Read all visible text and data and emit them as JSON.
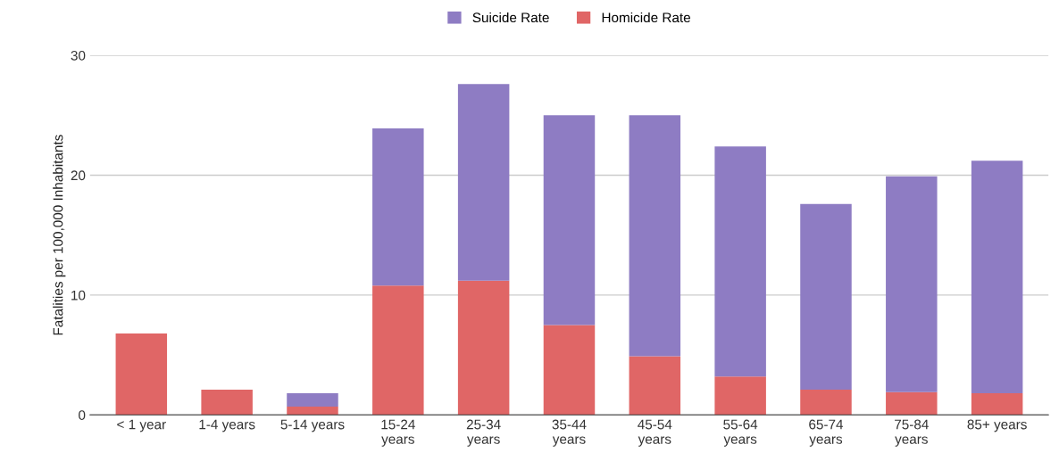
{
  "chart_data": {
    "type": "bar",
    "stacked": true,
    "ylabel": "Fatalities per 100,000 Inhabitants",
    "categories": [
      "< 1 year",
      "1-4 years",
      "5-14 years",
      "15-24\nyears",
      "25-34\nyears",
      "35-44\nyears",
      "45-54\nyears",
      "55-64\nyears",
      "65-74\nyears",
      "75-84\nyears",
      "85+ years"
    ],
    "series": [
      {
        "name": "Homicide Rate",
        "color": "#e06666",
        "values": [
          6.8,
          2.1,
          0.7,
          10.8,
          11.2,
          7.5,
          4.9,
          3.2,
          2.1,
          1.9,
          1.8
        ]
      },
      {
        "name": "Suicide Rate",
        "color": "#8e7cc3",
        "values": [
          0,
          0,
          1.1,
          13.1,
          16.4,
          17.5,
          20.1,
          19.2,
          15.5,
          18.0,
          19.4
        ]
      }
    ],
    "ylim": [
      0,
      30
    ],
    "yticks": [
      0,
      10,
      20,
      30
    ],
    "grid": "y",
    "legend": "top"
  }
}
